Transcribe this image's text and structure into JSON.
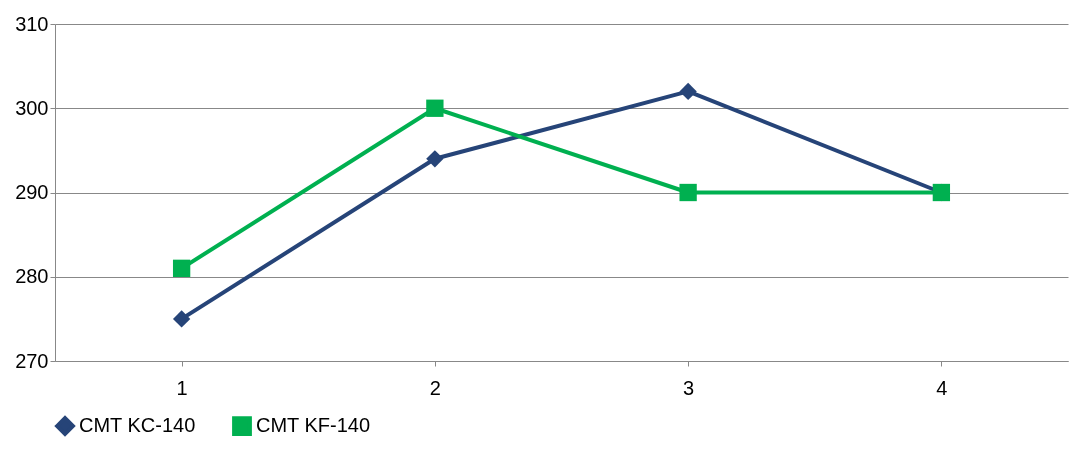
{
  "chart_data": {
    "type": "line",
    "categories": [
      "1",
      "2",
      "3",
      "4"
    ],
    "series": [
      {
        "name": "CMT KC-140",
        "color": "#264478",
        "marker": "diamond",
        "values": [
          275,
          294,
          302,
          290
        ]
      },
      {
        "name": "CMT KF-140",
        "color": "#00b050",
        "marker": "square",
        "values": [
          281,
          300,
          290,
          290
        ]
      }
    ],
    "ylim": [
      270,
      310
    ],
    "yticks": [
      270,
      280,
      290,
      300,
      310
    ],
    "grid": "y",
    "legend": "bottom",
    "line_style": "solid"
  }
}
